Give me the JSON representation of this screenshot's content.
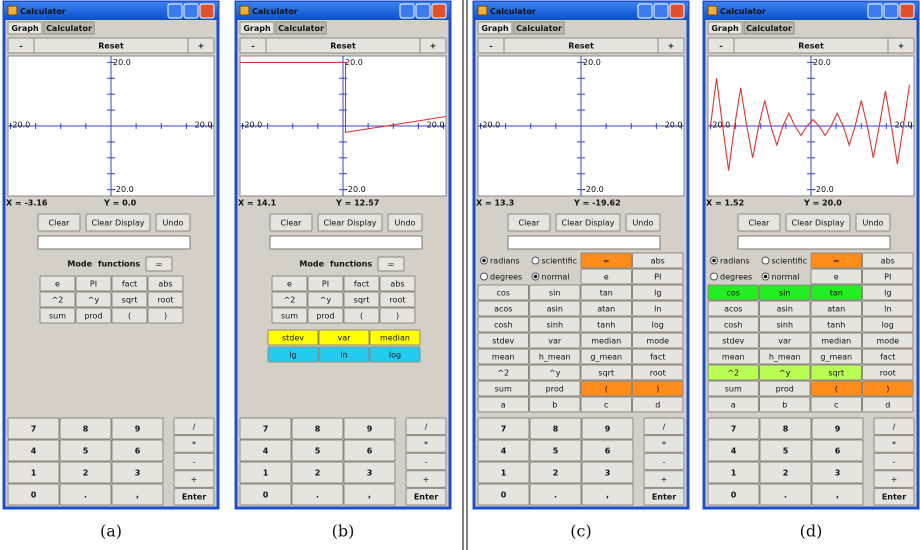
{
  "window": {
    "title": "Calculator",
    "tabs": [
      "Graph",
      "Calculator"
    ],
    "toolbar": [
      "-",
      "Reset",
      "+"
    ],
    "edit_buttons": [
      "Clear",
      "Clear Display",
      "Undo"
    ],
    "keypad": [
      [
        "7",
        "8",
        "9"
      ],
      [
        "4",
        "5",
        "6"
      ],
      [
        "1",
        "2",
        "3"
      ],
      [
        "0",
        ".",
        ","
      ]
    ],
    "operators": [
      "/",
      "*",
      "-",
      "+",
      "Enter"
    ],
    "xlim": [
      -20.5,
      20.5
    ],
    "ylim": [
      -22,
      22
    ],
    "x_labels": [
      {
        "value": -20,
        "label": "-20.0"
      },
      {
        "value": 20,
        "label": "20.0"
      }
    ],
    "y_labels": [
      {
        "value": 20,
        "label": "20.0"
      },
      {
        "value": -20,
        "label": "-20.0"
      }
    ],
    "minor_ticks": [
      -15,
      -10,
      -5,
      5,
      10,
      15
    ],
    "axis_color": "#3344cc"
  },
  "panels": [
    {
      "caption": "(a)",
      "status": [
        "X = -3.16",
        "Y = 0.0"
      ],
      "mode_header": [
        "Mode",
        "functions"
      ],
      "equals": "=",
      "function_rows": [
        [
          "e",
          "PI",
          "fact",
          "abs"
        ],
        [
          "^2",
          "^y",
          "sqrt",
          "root"
        ],
        [
          "sum",
          "prod",
          "(",
          ")"
        ]
      ]
    },
    {
      "caption": "(b)",
      "status": [
        "X = 14.1",
        "Y = 12.57"
      ],
      "mode_header": [
        "Mode",
        "functions"
      ],
      "equals": "=",
      "function_rows": [
        [
          "e",
          "PI",
          "fact",
          "abs"
        ],
        [
          "^2",
          "^y",
          "sqrt",
          "root"
        ],
        [
          "sum",
          "prod",
          "(",
          ")"
        ]
      ],
      "extra_rows": [
        [
          {
            "label": "stdev",
            "color": "#ffff00"
          },
          {
            "label": "var",
            "color": "#ffff00"
          },
          {
            "label": "median",
            "color": "#ffff00"
          }
        ],
        [
          {
            "label": "lg",
            "color": "#22ccf0"
          },
          {
            "label": "ln",
            "color": "#22ccf0"
          },
          {
            "label": "log",
            "color": "#22ccf0"
          }
        ]
      ],
      "curve": {
        "color": "#e83030",
        "x": [
          -20.5,
          0.5,
          0.5,
          20.5
        ],
        "y": [
          20,
          20,
          -2,
          3
        ]
      }
    },
    {
      "caption": "(c)",
      "status": [
        "X = 13.3",
        "Y = -19.62"
      ],
      "function_rows": [
        [
          {
            "label": "radians",
            "radio": true,
            "checked": true
          },
          {
            "label": "scientific",
            "radio": true,
            "checked": false
          },
          {
            "label": "=",
            "color": "#ff8c1a"
          },
          "abs"
        ],
        [
          {
            "label": "degrees",
            "radio": true,
            "checked": false
          },
          {
            "label": "normal",
            "radio": true,
            "checked": true
          },
          "e",
          "PI"
        ],
        [
          "cos",
          "sin",
          "tan",
          "lg"
        ],
        [
          "acos",
          "asin",
          "atan",
          "ln"
        ],
        [
          "cosh",
          "sinh",
          "tanh",
          "log"
        ],
        [
          "stdev",
          "var",
          "median",
          "mode"
        ],
        [
          "mean",
          "h_mean",
          "g_mean",
          "fact"
        ],
        [
          "^2",
          "^y",
          "sqrt",
          "root"
        ],
        [
          "sum",
          "prod",
          {
            "label": "(",
            "color": "#ff8c1a"
          },
          {
            "label": ")",
            "color": "#ff8c1a"
          }
        ],
        [
          "a",
          "b",
          "c",
          "d"
        ]
      ]
    },
    {
      "caption": "(d)",
      "status": [
        "X = 1.52",
        "Y = 20.0"
      ],
      "function_rows": [
        [
          {
            "label": "radians",
            "radio": true,
            "checked": true
          },
          {
            "label": "scientific",
            "radio": true,
            "checked": false
          },
          {
            "label": "=",
            "color": "#ff8c1a"
          },
          "abs"
        ],
        [
          {
            "label": "degrees",
            "radio": true,
            "checked": false
          },
          {
            "label": "normal",
            "radio": true,
            "checked": true
          },
          "e",
          "PI"
        ],
        [
          {
            "label": "cos",
            "color": "#22ee22"
          },
          {
            "label": "sin",
            "color": "#22ee22"
          },
          {
            "label": "tan",
            "color": "#22ee22"
          },
          "lg"
        ],
        [
          "acos",
          "asin",
          "atan",
          "ln"
        ],
        [
          "cosh",
          "sinh",
          "tanh",
          "log"
        ],
        [
          "stdev",
          "var",
          "median",
          "mode"
        ],
        [
          "mean",
          "h_mean",
          "g_mean",
          "fact"
        ],
        [
          {
            "label": "^2",
            "color": "#bbff55"
          },
          {
            "label": "^y",
            "color": "#bbff55"
          },
          {
            "label": "sqrt",
            "color": "#bbff55"
          },
          "root"
        ],
        [
          "sum",
          "prod",
          {
            "label": "(",
            "color": "#ff8c1a"
          },
          {
            "label": ")",
            "color": "#ff8c1a"
          }
        ],
        [
          "a",
          "b",
          "c",
          "d"
        ]
      ],
      "curve": {
        "color": "#e83030",
        "x": [
          -20,
          -18.8,
          -17.6,
          -16.4,
          -15.2,
          -14,
          -12.8,
          -11.6,
          -10.4,
          -9.2,
          -8,
          -6.8,
          -5.6,
          -4.4,
          -3.2,
          -2,
          -0.8,
          0.4,
          1.6,
          2.8,
          4,
          5.2,
          6.4,
          7.6,
          8.8,
          10,
          11.2,
          12.4,
          13.6,
          14.8,
          16,
          17.2,
          18.4,
          19.6
        ],
        "y": [
          0,
          15,
          0,
          -14,
          0,
          12,
          0,
          -10,
          0,
          8,
          0,
          -6,
          0,
          4,
          0,
          -3,
          0,
          2,
          0,
          -3,
          0,
          4,
          0,
          -6,
          0,
          8,
          0,
          -10,
          0,
          11,
          0,
          -12,
          0,
          13
        ]
      }
    }
  ]
}
